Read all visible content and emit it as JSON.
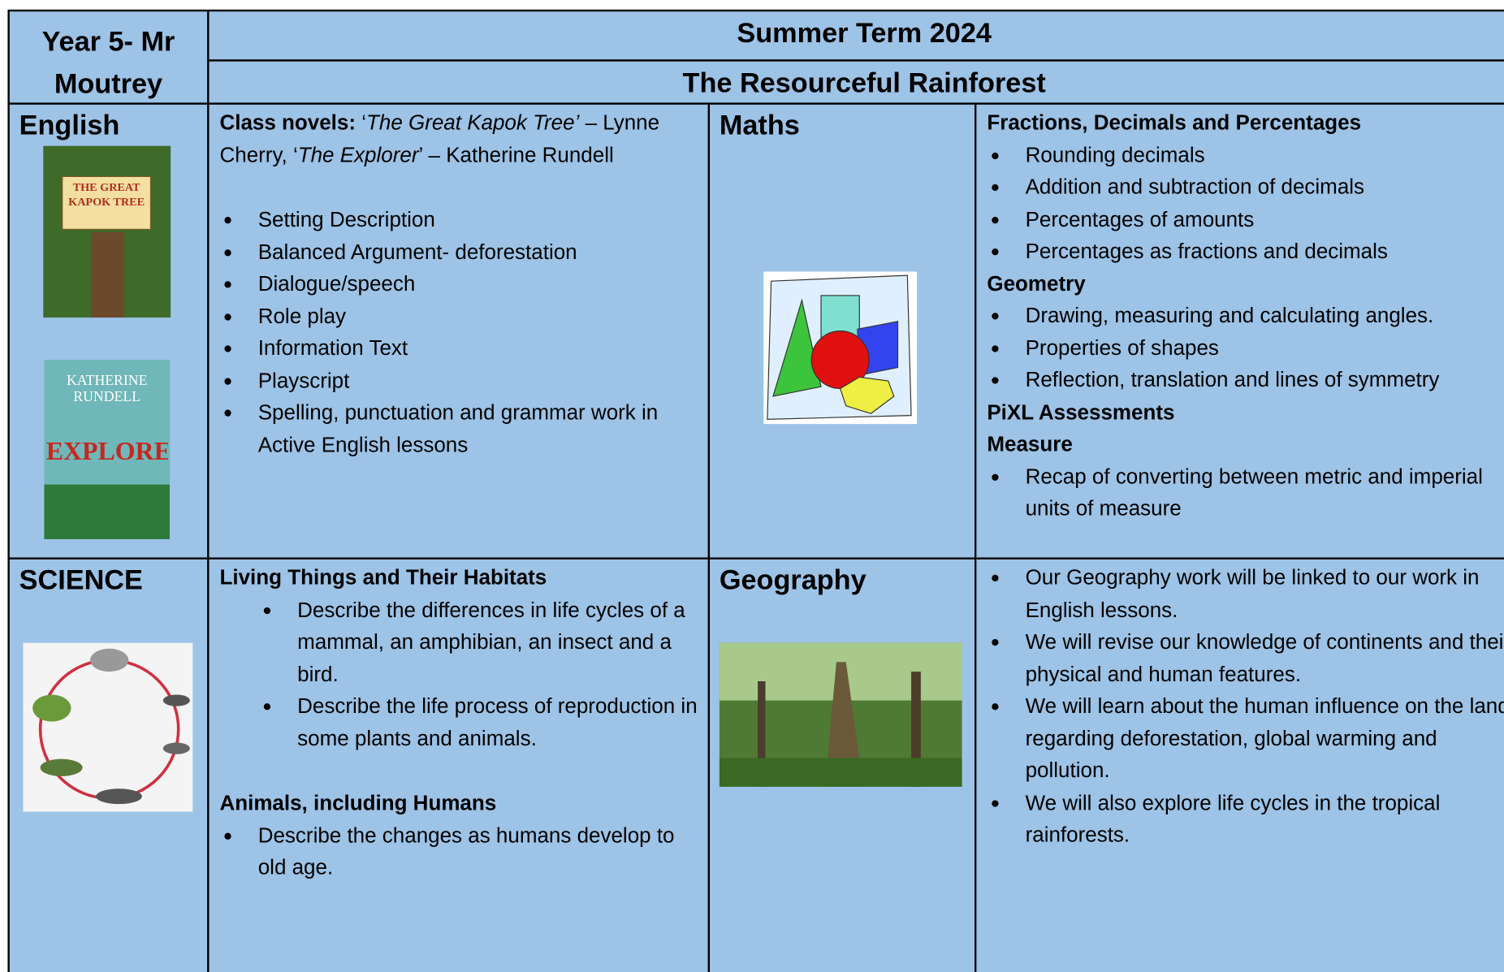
{
  "header": {
    "teacher": "Year 5- Mr Moutrey",
    "term": "Summer Term 2024",
    "topic": "The Resourceful Rainforest"
  },
  "english": {
    "heading": "English",
    "novels": [
      "Class novels:",
      " ‘",
      "The Great Kapok Tree’",
      " – Lynne Cherry, ‘",
      "The Explorer",
      "’ – Katherine Rundell"
    ],
    "items": [
      "Setting Description",
      "Balanced Argument- deforestation",
      "Dialogue/speech",
      "Role play",
      "Information Text",
      "Playscript",
      "Spelling, punctuation and grammar work in Active English lessons"
    ],
    "cover1": "THE GREAT KAPOK TREE",
    "cover2_author": "KATHERINE RUNDELL",
    "cover2_title": "EXPLORER"
  },
  "maths": {
    "heading": "Maths",
    "groups": [
      {
        "heading": "Fractions, Decimals and Percentages",
        "items": [
          "Rounding decimals",
          "Addition and subtraction of decimals",
          "Percentages of amounts",
          "Percentages as fractions and decimals"
        ]
      },
      {
        "heading": "Geometry",
        "items": [
          "Drawing, measuring and calculating angles.",
          "Properties of shapes",
          "Reflection, translation and lines of symmetry"
        ]
      },
      {
        "heading": "PiXL Assessments",
        "items": []
      },
      {
        "heading": "Measure",
        "items": [
          "Recap of converting between metric and imperial units of measure"
        ]
      }
    ]
  },
  "science": {
    "heading": "SCIENCE",
    "groups": [
      {
        "heading": "Living Things and Their Habitats",
        "items": [
          "Describe the differences in life cycles of a mammal, an amphibian, an insect and a bird.",
          "Describe the life process of reproduction in some plants and animals."
        ]
      },
      {
        "heading": "Animals, including Humans",
        "items": [
          "Describe the changes as humans develop to old age."
        ]
      }
    ]
  },
  "geography": {
    "heading": "Geography",
    "items": [
      "Our Geography work will be linked to our work in English lessons.",
      "We will revise our knowledge of continents and their physical and human features.",
      "We will learn about the human influence on the land regarding deforestation, global warming and pollution.",
      "We will also explore life cycles in the tropical rainforests."
    ]
  }
}
